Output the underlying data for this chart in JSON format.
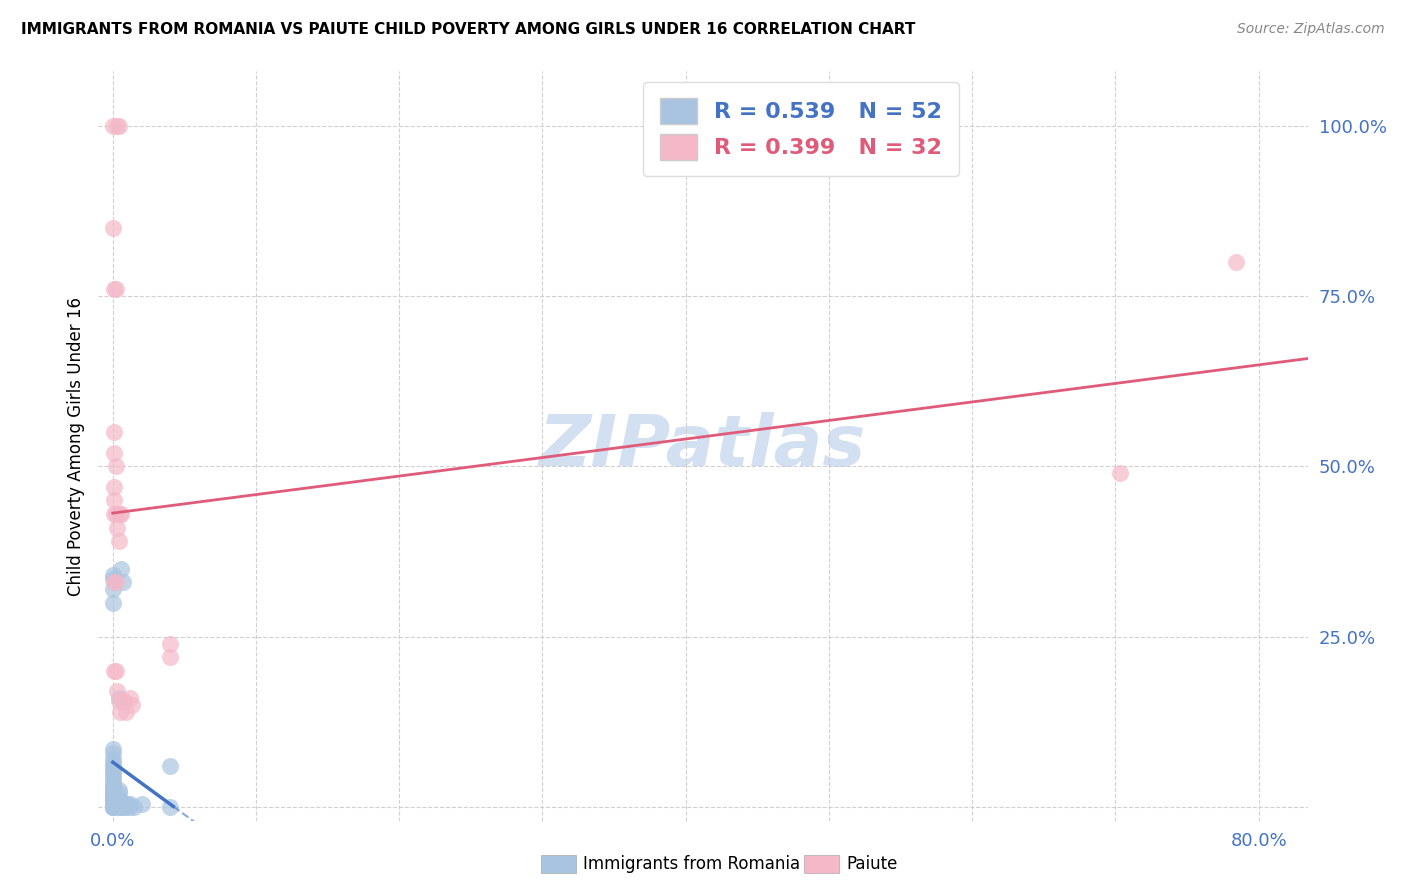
{
  "title": "IMMIGRANTS FROM ROMANIA VS PAIUTE CHILD POVERTY AMONG GIRLS UNDER 16 CORRELATION CHART",
  "source": "Source: ZipAtlas.com",
  "ylabel": "Child Poverty Among Girls Under 16",
  "romania_color": "#a8c4e0",
  "paiute_color": "#f4b8c8",
  "trendline_romania_color": "#4472c4",
  "trendline_paiute_color": "#e05a7a",
  "watermark": "ZIPatlas",
  "watermark_color": "#b0c8e8",
  "romania_scatter": [
    [
      0.0,
      0.0
    ],
    [
      0.0,
      0.0
    ],
    [
      0.0,
      0.0
    ],
    [
      0.0,
      0.0
    ],
    [
      0.0,
      0.0
    ],
    [
      0.0,
      0.005
    ],
    [
      0.0,
      0.005
    ],
    [
      0.0,
      0.01
    ],
    [
      0.0,
      0.01
    ],
    [
      0.0,
      0.015
    ],
    [
      0.0,
      0.015
    ],
    [
      0.0,
      0.02
    ],
    [
      0.0,
      0.02
    ],
    [
      0.0,
      0.025
    ],
    [
      0.0,
      0.03
    ],
    [
      0.0,
      0.03
    ],
    [
      0.0,
      0.035
    ],
    [
      0.0,
      0.04
    ],
    [
      0.0,
      0.045
    ],
    [
      0.0,
      0.05
    ],
    [
      0.0,
      0.055
    ],
    [
      0.0,
      0.06
    ],
    [
      0.0,
      0.065
    ],
    [
      0.0,
      0.07
    ],
    [
      0.0,
      0.08
    ],
    [
      0.0,
      0.085
    ],
    [
      0.0,
      0.3
    ],
    [
      0.0,
      0.32
    ],
    [
      0.0,
      0.335
    ],
    [
      0.0,
      0.34
    ],
    [
      0.004,
      0.0
    ],
    [
      0.004,
      0.005
    ],
    [
      0.004,
      0.01
    ],
    [
      0.004,
      0.02
    ],
    [
      0.004,
      0.025
    ],
    [
      0.004,
      0.16
    ],
    [
      0.005,
      0.0
    ],
    [
      0.005,
      0.005
    ],
    [
      0.005,
      0.01
    ],
    [
      0.006,
      0.0
    ],
    [
      0.006,
      0.35
    ],
    [
      0.007,
      0.33
    ],
    [
      0.008,
      0.0
    ],
    [
      0.008,
      0.005
    ],
    [
      0.01,
      0.0
    ],
    [
      0.01,
      0.005
    ],
    [
      0.012,
      0.0
    ],
    [
      0.012,
      0.005
    ],
    [
      0.015,
      0.0
    ],
    [
      0.02,
      0.005
    ],
    [
      0.04,
      0.0
    ],
    [
      0.04,
      0.06
    ]
  ],
  "paiute_scatter": [
    [
      0.0,
      1.0
    ],
    [
      0.003,
      1.0
    ],
    [
      0.004,
      1.0
    ],
    [
      0.0,
      0.85
    ],
    [
      0.001,
      0.76
    ],
    [
      0.002,
      0.76
    ],
    [
      0.001,
      0.55
    ],
    [
      0.001,
      0.52
    ],
    [
      0.002,
      0.5
    ],
    [
      0.001,
      0.47
    ],
    [
      0.001,
      0.45
    ],
    [
      0.002,
      0.43
    ],
    [
      0.001,
      0.43
    ],
    [
      0.005,
      0.43
    ],
    [
      0.006,
      0.43
    ],
    [
      0.003,
      0.41
    ],
    [
      0.004,
      0.39
    ],
    [
      0.001,
      0.33
    ],
    [
      0.002,
      0.33
    ],
    [
      0.001,
      0.2
    ],
    [
      0.002,
      0.2
    ],
    [
      0.003,
      0.17
    ],
    [
      0.004,
      0.155
    ],
    [
      0.005,
      0.14
    ],
    [
      0.008,
      0.155
    ],
    [
      0.009,
      0.14
    ],
    [
      0.012,
      0.16
    ],
    [
      0.013,
      0.15
    ],
    [
      0.04,
      0.24
    ],
    [
      0.04,
      0.22
    ],
    [
      0.7,
      0.49
    ],
    [
      0.78,
      0.8
    ]
  ],
  "xlim": [
    -0.01,
    0.83
  ],
  "ylim": [
    -0.02,
    1.08
  ],
  "xticks": [
    0.0,
    0.0995,
    0.199,
    0.2985,
    0.398,
    0.4975,
    0.597,
    0.6965,
    0.796
  ],
  "yticks": [
    0.0,
    0.25,
    0.5,
    0.75,
    1.0
  ],
  "xtick_labels": [
    "0.0%",
    "",
    "",
    "",
    "",
    "",
    "",
    "",
    "80.0%"
  ],
  "ytick_labels": [
    "",
    "25.0%",
    "50.0%",
    "75.0%",
    "100.0%"
  ]
}
